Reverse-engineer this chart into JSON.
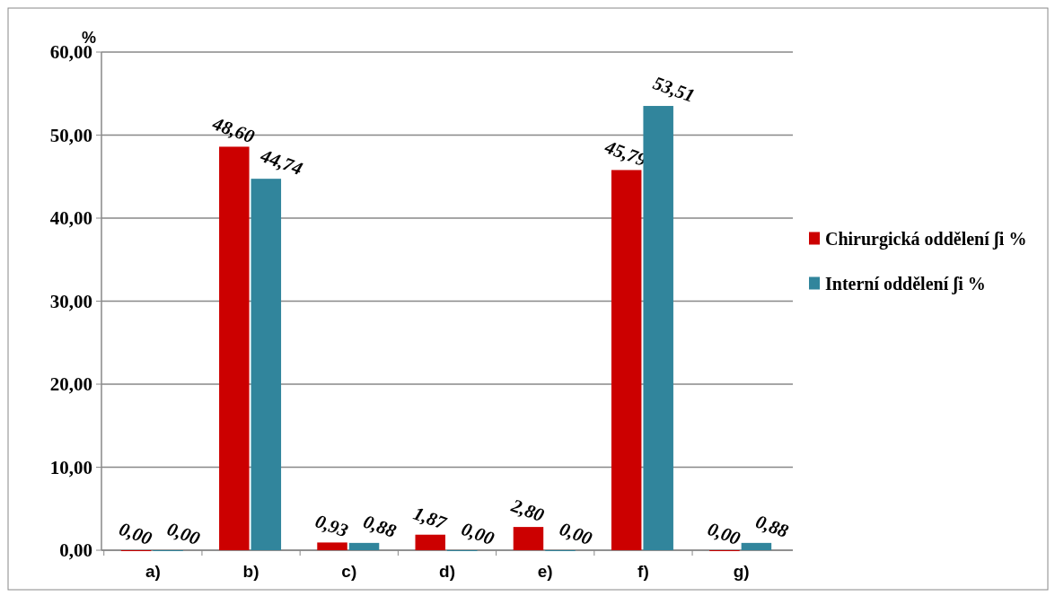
{
  "chart_data": {
    "type": "bar",
    "ylabel": "%",
    "categories": [
      "a)",
      "b)",
      "c)",
      "d)",
      "e)",
      "f)",
      "g)"
    ],
    "series": [
      {
        "name": "Chirurgická oddělení  ʃi %",
        "color": "#cc0000",
        "values": [
          0,
          48.6,
          0.93,
          1.87,
          2.8,
          45.79,
          0
        ],
        "value_labels": [
          "0,00",
          "48,60",
          "0,93",
          "1,87",
          "2,80",
          "45,79",
          "0,00"
        ]
      },
      {
        "name": "Interní oddělení  ʃi %",
        "color": "#31859c",
        "values": [
          0,
          44.74,
          0.88,
          0,
          0,
          53.51,
          0.88
        ],
        "value_labels": [
          "0,00",
          "44,74",
          "0,88",
          "0,00",
          "0,00",
          "53,51",
          "0,88"
        ]
      }
    ],
    "ylim": [
      0,
      60
    ],
    "yticks": [
      {
        "value": 0,
        "label": "0,00"
      },
      {
        "value": 10,
        "label": "10,00"
      },
      {
        "value": 20,
        "label": "20,00"
      },
      {
        "value": 30,
        "label": "30,00"
      },
      {
        "value": 40,
        "label": "40,00"
      },
      {
        "value": 50,
        "label": "50,00"
      },
      {
        "value": 60,
        "label": "60,00"
      }
    ],
    "grid": "y",
    "legend": "right"
  }
}
